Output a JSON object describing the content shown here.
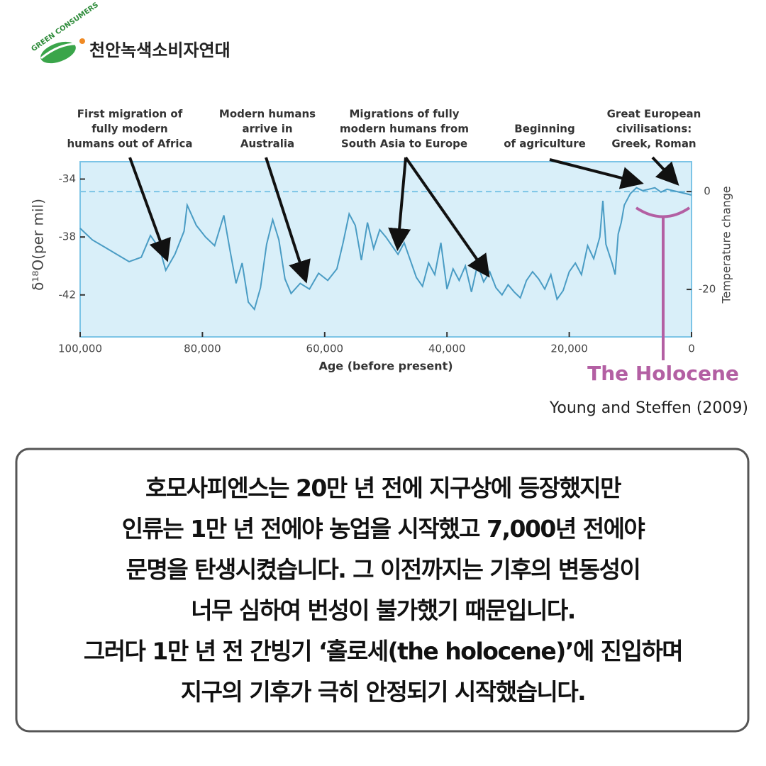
{
  "logo": {
    "text": "천안녹색소비자연대",
    "arc_text": "GREEN CONSUMERS"
  },
  "chart_data": {
    "type": "line",
    "x": [
      100000,
      98000,
      96000,
      94000,
      92000,
      90000,
      88500,
      87000,
      86000,
      84500,
      83000,
      82500,
      81000,
      79500,
      78000,
      76500,
      75500,
      74500,
      73500,
      72500,
      71500,
      70500,
      69500,
      68500,
      67500,
      66500,
      65500,
      64000,
      62500,
      61000,
      59500,
      58000,
      57000,
      56000,
      55000,
      54000,
      53000,
      52000,
      51000,
      50000,
      49000,
      48000,
      47000,
      46000,
      45000,
      44000,
      43000,
      42000,
      41000,
      40000,
      39000,
      38000,
      37000,
      36000,
      35000,
      34000,
      33000,
      32000,
      31000,
      30000,
      29000,
      28000,
      27000,
      26000,
      25000,
      24000,
      23000,
      22000,
      21000,
      20000,
      19000,
      18000,
      17000,
      16000,
      15000,
      14500,
      14000,
      13000,
      12500,
      12000,
      11500,
      11000,
      10000,
      9000,
      8000,
      7000,
      6000,
      5000,
      4000,
      3000,
      2000,
      1000,
      0
    ],
    "values": [
      -37.4,
      -38.2,
      -38.7,
      -39.2,
      -39.7,
      -39.4,
      -37.9,
      -38.8,
      -40.3,
      -39.2,
      -37.6,
      -35.8,
      -37.2,
      -38.0,
      -38.6,
      -36.5,
      -38.9,
      -41.2,
      -39.8,
      -42.5,
      -43.0,
      -41.5,
      -38.5,
      -36.8,
      -38.2,
      -40.9,
      -41.9,
      -41.2,
      -41.6,
      -40.5,
      -41.0,
      -40.2,
      -38.4,
      -36.4,
      -37.2,
      -39.6,
      -37.0,
      -38.8,
      -37.5,
      -38.0,
      -38.6,
      -39.2,
      -38.4,
      -39.6,
      -40.8,
      -41.4,
      -39.8,
      -40.6,
      -38.4,
      -41.6,
      -40.2,
      -41.0,
      -40.0,
      -41.8,
      -39.9,
      -41.1,
      -40.4,
      -41.5,
      -42.0,
      -41.3,
      -41.8,
      -42.2,
      -41.0,
      -40.4,
      -40.9,
      -41.6,
      -40.6,
      -42.3,
      -41.7,
      -40.4,
      -39.8,
      -40.6,
      -38.6,
      -39.5,
      -38.0,
      -35.5,
      -38.5,
      -39.8,
      -40.6,
      -37.8,
      -37.0,
      -35.8,
      -35.0,
      -34.6,
      -34.8,
      -34.7,
      -34.6,
      -34.9,
      -34.7,
      -34.8,
      -34.9,
      -35.0,
      -35.1
    ],
    "color": "#4a9cc4",
    "xlim": [
      100000,
      0
    ],
    "xticks": [
      {
        "value": 100000,
        "label": "100,000"
      },
      {
        "value": 80000,
        "label": "80,000"
      },
      {
        "value": 60000,
        "label": "60,000"
      },
      {
        "value": 40000,
        "label": "40,000"
      },
      {
        "value": 20000,
        "label": "20,000"
      },
      0
    ],
    "ylim": [
      -44.9,
      -32.8
    ],
    "yticks": [
      -34,
      -38,
      -42
    ],
    "y2lim": [
      -29.7,
      6.1
    ],
    "y2ticks": [
      0,
      -20
    ],
    "y2_reference": 0,
    "ylabel": "δ¹⁸O(per mil)",
    "y2label": "Temperature change",
    "xlabel": "Age (before present)",
    "annotations": [
      [
        "First migration of",
        "fully modern",
        "humans out of Africa"
      ],
      [
        "Modern humans",
        "arrive in",
        "Australia"
      ],
      [
        "Migrations of fully",
        "modern humans from",
        "South Asia to Europe"
      ],
      [
        "Beginning",
        "of agriculture"
      ],
      [
        "Great European",
        "civilisations:",
        "Greek, Roman"
      ]
    ],
    "holocene_label": "The Holocene",
    "source": "Young and Steffen (2009)"
  },
  "body": {
    "lines": [
      "호모사피엔스는 20만 년 전에 지구상에 등장했지만",
      "인류는 1만 년 전에야 농업을 시작했고 7,000년 전에야",
      "문명을 탄생시켰습니다. 그 이전까지는 기후의 변동성이",
      "너무 심하여 번성이 불가했기 때문입니다.",
      "그러다 1만 년 전 간빙기 ‘홀로세(the holocene)’에 진입하며",
      "지구의 기후가 극히 안정되기 시작했습니다."
    ]
  }
}
